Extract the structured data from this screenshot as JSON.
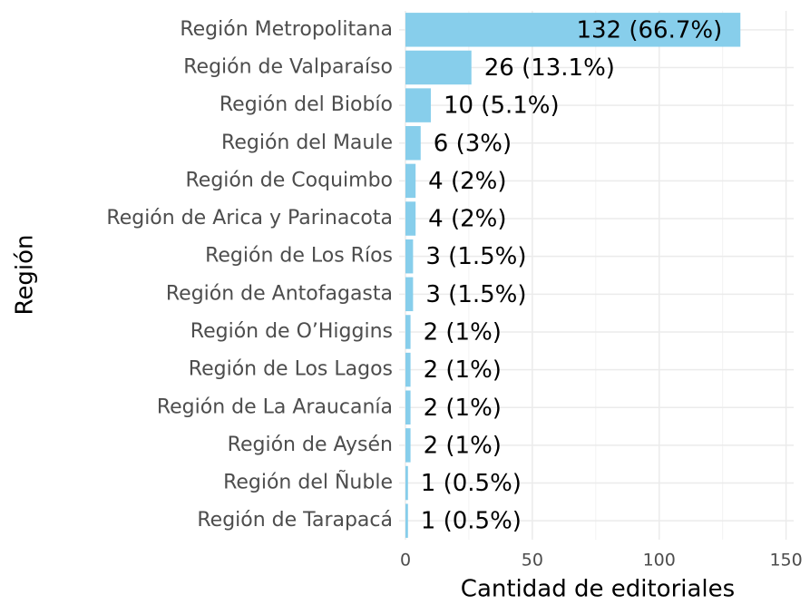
{
  "chart_data": {
    "type": "bar",
    "orientation": "horizontal",
    "x_label": "Cantidad de editoriales",
    "y_label": "Región",
    "categories": [
      "Región Metropolitana",
      "Región de Valparaíso",
      "Región del Biobío",
      "Región del Maule",
      "Región de Coquimbo",
      "Región de Arica y Parinacota",
      "Región de Los Ríos",
      "Región de Antofagasta",
      "Región de O’Higgins",
      "Región de Los Lagos",
      "Región de La Araucanía",
      "Región de Aysén",
      "Región del Ñuble",
      "Región de Tarapacá"
    ],
    "values": [
      132,
      26,
      10,
      6,
      4,
      4,
      3,
      3,
      2,
      2,
      2,
      2,
      1,
      1
    ],
    "value_labels": [
      "132 (66.7%)",
      "26 (13.1%)",
      "10 (5.1%)",
      "6 (3%)",
      "4 (2%)",
      "4 (2%)",
      "3 (1.5%)",
      "3 (1.5%)",
      "2 (1%)",
      "2 (1%)",
      "2 (1%)",
      "2 (1%)",
      "1 (0.5%)",
      "1 (0.5%)"
    ],
    "color": "#87ceeb",
    "xlim": [
      -2.5,
      153
    ],
    "xticks": [
      0,
      50,
      100,
      150
    ],
    "xticks_minor": [
      25,
      75,
      125
    ],
    "grid": true
  }
}
